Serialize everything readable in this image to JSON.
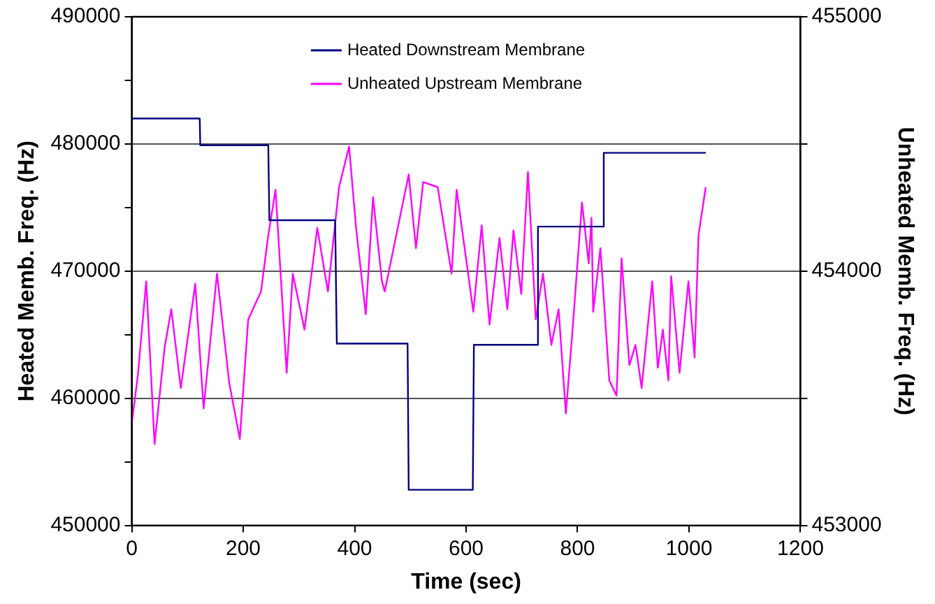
{
  "chart_data": {
    "type": "line",
    "xlabel": "Time (sec)",
    "ylabel": "Heated Memb. Freq. (Hz)",
    "y2label": "Unheated Memb. Freq. (Hz)",
    "xlim": [
      0,
      1200
    ],
    "xticks": [
      0,
      200,
      400,
      600,
      800,
      1000,
      1200
    ],
    "ylim": [
      450000,
      490000
    ],
    "yticks": [
      450000,
      {
        "value": 455000,
        "label": null
      },
      460000,
      {
        "value": 465000,
        "label": null
      },
      470000,
      {
        "value": 475000,
        "label": null
      },
      480000,
      {
        "value": 485000,
        "label": null
      },
      490000
    ],
    "y2lim": [
      453000,
      455000
    ],
    "y2ticks": [
      453000,
      {
        "value": 453500,
        "label": null
      },
      454000,
      {
        "value": 454500,
        "label": null
      },
      455000
    ],
    "grid": "y",
    "legend": "top",
    "marker": "none",
    "line_style": "solid",
    "series": [
      {
        "name": "Heated Downstream Membrane",
        "color": "#000080",
        "x": [
          0,
          122,
          123,
          245,
          247,
          365,
          368,
          495,
          497,
          612,
          614,
          727,
          729,
          845,
          847,
          1030
        ],
        "values": [
          482000,
          482000,
          479900,
          479900,
          474000,
          474000,
          464300,
          464300,
          452800,
          452800,
          464200,
          464200,
          473500,
          473500,
          479300,
          479300
        ]
      },
      {
        "name": "Unheated Upstream Membrane",
        "color": "#ff00ff",
        "axis": "y2",
        "x": [
          0,
          11,
          26,
          41,
          59,
          71,
          88,
          114,
          129,
          153,
          175,
          194,
          209,
          232,
          245,
          258,
          278,
          289,
          310,
          333,
          352,
          372,
          390,
          403,
          420,
          433,
          449,
          454,
          497,
          510,
          523,
          549,
          574,
          583,
          613,
          628,
          642,
          660,
          674,
          685,
          699,
          711,
          725,
          738,
          753,
          766,
          779,
          790,
          808,
          820,
          825,
          828,
          841,
          857,
          870,
          879,
          893,
          904,
          915,
          934,
          944,
          953,
          963,
          968,
          983,
          999,
          1010,
          1017,
          1030
        ],
        "values": [
          453400,
          453590,
          453960,
          453320,
          453700,
          453850,
          453540,
          453950,
          453460,
          453990,
          453560,
          453340,
          453810,
          453920,
          454140,
          454320,
          453600,
          453990,
          453770,
          454170,
          453920,
          454330,
          454490,
          454160,
          453830,
          454290,
          453960,
          453920,
          454380,
          454090,
          454350,
          454330,
          453990,
          454320,
          453840,
          454180,
          453790,
          454130,
          453850,
          454160,
          453910,
          454390,
          453810,
          453990,
          453710,
          453850,
          453440,
          453740,
          454270,
          454030,
          454210,
          453840,
          454090,
          453570,
          453510,
          454050,
          453630,
          453710,
          453540,
          453960,
          453620,
          453770,
          453570,
          453980,
          453600,
          453960,
          453660,
          454140,
          454330
        ]
      }
    ]
  }
}
